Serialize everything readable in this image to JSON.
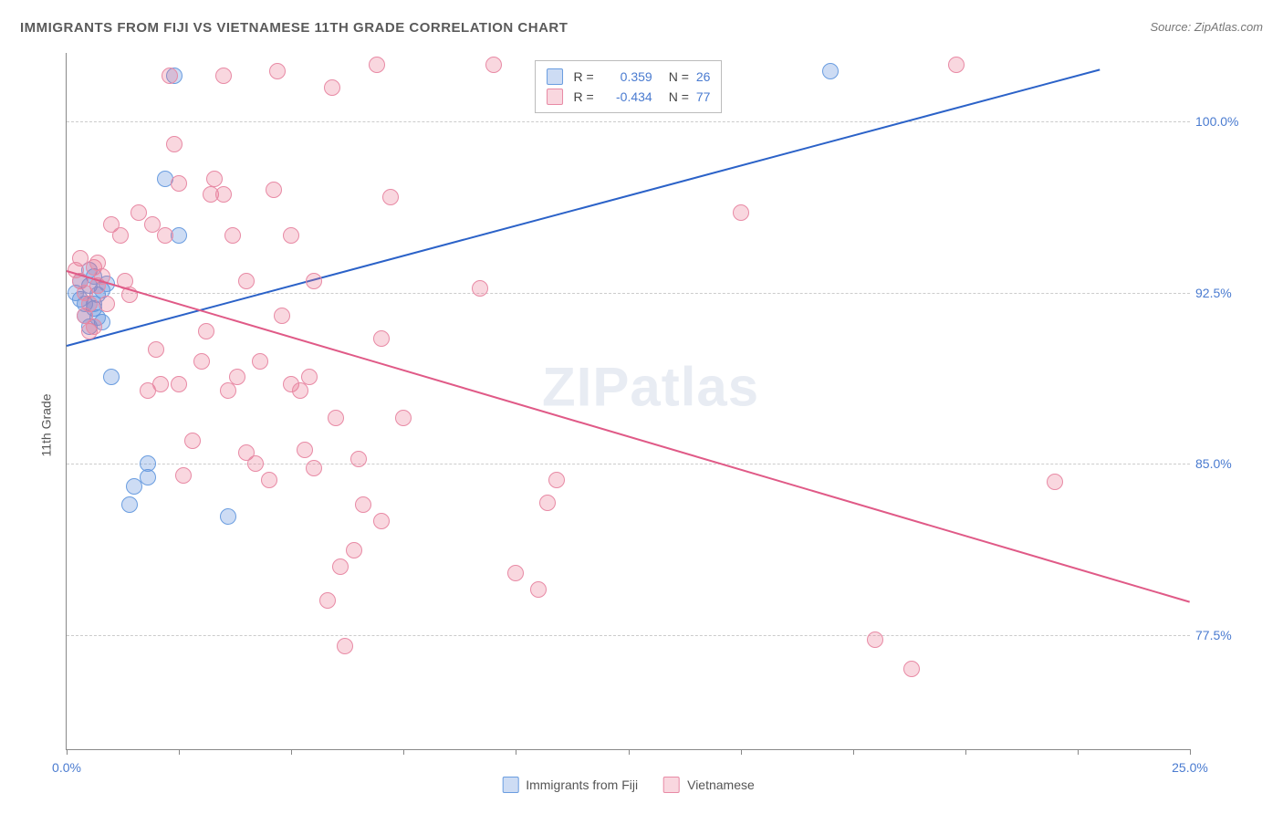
{
  "title": "IMMIGRANTS FROM FIJI VS VIETNAMESE 11TH GRADE CORRELATION CHART",
  "source": "Source: ZipAtlas.com",
  "yaxis_label": "11th Grade",
  "watermark_bold": "ZIP",
  "watermark_rest": "atlas",
  "colors": {
    "fiji_fill": "rgba(90,140,220,0.30)",
    "fiji_stroke": "#6a9de0",
    "fiji_line": "#2b62c8",
    "viet_fill": "rgba(235,110,140,0.28)",
    "viet_stroke": "#e88aa5",
    "viet_line": "#e05a87",
    "grid": "#cccccc",
    "axis_text": "#4a7bd0"
  },
  "chart": {
    "type": "scatter",
    "xlim": [
      0,
      25
    ],
    "ylim": [
      72.5,
      103
    ],
    "xticks": [
      0,
      2.5,
      5,
      7.5,
      10,
      12.5,
      15,
      17.5,
      20,
      22.5,
      25
    ],
    "xtick_labels": {
      "0": "0.0%",
      "25": "25.0%"
    },
    "yticks": [
      77.5,
      85.0,
      92.5,
      100.0
    ],
    "ytick_labels": [
      "77.5%",
      "85.0%",
      "92.5%",
      "100.0%"
    ],
    "marker_radius": 9,
    "line_width": 2,
    "series": [
      {
        "name": "Immigrants from Fiji",
        "key": "fiji",
        "R": "0.359",
        "N": "26",
        "trend": {
          "x1": 0,
          "y1": 90.2,
          "x2": 23,
          "y2": 102.3
        },
        "points": [
          [
            0.3,
            92.2
          ],
          [
            0.4,
            91.5
          ],
          [
            0.5,
            92.8
          ],
          [
            0.6,
            91.8
          ],
          [
            0.7,
            92.4
          ],
          [
            0.8,
            91.2
          ],
          [
            0.4,
            92.0
          ],
          [
            0.6,
            93.2
          ],
          [
            0.8,
            92.6
          ],
          [
            0.5,
            91.0
          ],
          [
            0.3,
            93.0
          ],
          [
            0.7,
            91.4
          ],
          [
            1.0,
            88.8
          ],
          [
            1.4,
            83.2
          ],
          [
            1.8,
            84.4
          ],
          [
            1.8,
            85.0
          ],
          [
            1.5,
            84.0
          ],
          [
            2.2,
            97.5
          ],
          [
            2.4,
            102.0
          ],
          [
            2.5,
            95.0
          ],
          [
            0.9,
            92.9
          ],
          [
            0.2,
            92.5
          ],
          [
            0.6,
            92.0
          ],
          [
            0.5,
            93.5
          ],
          [
            3.6,
            82.7
          ],
          [
            17.0,
            102.2
          ]
        ]
      },
      {
        "name": "Vietnamese",
        "key": "viet",
        "R": "-0.434",
        "N": "77",
        "trend": {
          "x1": 0,
          "y1": 93.5,
          "x2": 25,
          "y2": 79.0
        },
        "points": [
          [
            0.3,
            93.0
          ],
          [
            0.5,
            92.0
          ],
          [
            0.6,
            93.6
          ],
          [
            0.7,
            92.8
          ],
          [
            0.4,
            91.5
          ],
          [
            0.8,
            93.2
          ],
          [
            0.5,
            90.8
          ],
          [
            0.9,
            92.0
          ],
          [
            0.3,
            94.0
          ],
          [
            0.6,
            91.0
          ],
          [
            0.4,
            92.5
          ],
          [
            0.7,
            93.8
          ],
          [
            1.0,
            95.5
          ],
          [
            1.2,
            95.0
          ],
          [
            1.3,
            93.0
          ],
          [
            1.4,
            92.4
          ],
          [
            1.6,
            96.0
          ],
          [
            1.8,
            88.2
          ],
          [
            1.9,
            95.5
          ],
          [
            2.0,
            90.0
          ],
          [
            2.1,
            88.5
          ],
          [
            2.2,
            95.0
          ],
          [
            2.3,
            102.0
          ],
          [
            2.4,
            99.0
          ],
          [
            2.5,
            97.3
          ],
          [
            2.5,
            88.5
          ],
          [
            2.6,
            84.5
          ],
          [
            2.8,
            86.0
          ],
          [
            3.0,
            89.5
          ],
          [
            3.1,
            90.8
          ],
          [
            3.2,
            96.8
          ],
          [
            3.3,
            97.5
          ],
          [
            3.5,
            96.8
          ],
          [
            3.5,
            102.0
          ],
          [
            3.6,
            88.2
          ],
          [
            3.7,
            95.0
          ],
          [
            3.8,
            88.8
          ],
          [
            4.0,
            93.0
          ],
          [
            4.0,
            85.5
          ],
          [
            4.2,
            85.0
          ],
          [
            4.3,
            89.5
          ],
          [
            4.5,
            84.3
          ],
          [
            4.6,
            97.0
          ],
          [
            4.7,
            102.2
          ],
          [
            4.8,
            91.5
          ],
          [
            5.0,
            88.5
          ],
          [
            5.0,
            95.0
          ],
          [
            5.2,
            88.2
          ],
          [
            5.3,
            85.6
          ],
          [
            5.4,
            88.8
          ],
          [
            5.5,
            93.0
          ],
          [
            5.5,
            84.8
          ],
          [
            5.8,
            79.0
          ],
          [
            5.9,
            101.5
          ],
          [
            6.0,
            87.0
          ],
          [
            6.1,
            80.5
          ],
          [
            6.2,
            77.0
          ],
          [
            6.4,
            81.2
          ],
          [
            6.5,
            85.2
          ],
          [
            6.6,
            83.2
          ],
          [
            6.9,
            102.5
          ],
          [
            7.0,
            82.5
          ],
          [
            7.0,
            90.5
          ],
          [
            7.2,
            96.7
          ],
          [
            7.5,
            87.0
          ],
          [
            9.2,
            92.7
          ],
          [
            9.5,
            102.5
          ],
          [
            10.0,
            80.2
          ],
          [
            10.9,
            84.3
          ],
          [
            10.7,
            83.3
          ],
          [
            10.5,
            79.5
          ],
          [
            15.0,
            96.0
          ],
          [
            18.0,
            77.3
          ],
          [
            18.8,
            76.0
          ],
          [
            19.8,
            102.5
          ],
          [
            22.0,
            84.2
          ],
          [
            0.2,
            93.5
          ]
        ]
      }
    ],
    "bottom_legend": [
      {
        "swatch": "fiji",
        "label": "Immigrants from Fiji"
      },
      {
        "swatch": "viet",
        "label": "Vietnamese"
      }
    ]
  }
}
